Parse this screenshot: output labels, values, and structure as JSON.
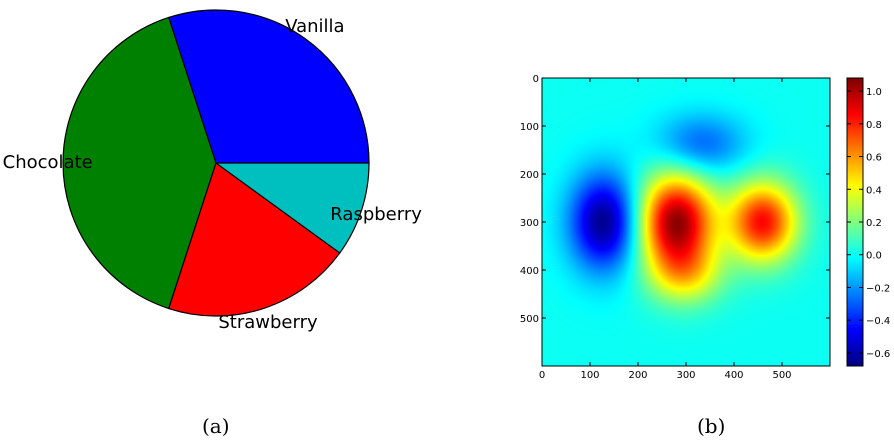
{
  "captions": {
    "a": "(a)",
    "b": "(b)"
  },
  "chart_data": [
    {
      "type": "pie",
      "categories": [
        "Vanilla",
        "Chocolate",
        "Strawberry",
        "Raspberry"
      ],
      "values": [
        30,
        40,
        20,
        10
      ],
      "colors": [
        "#0000ff",
        "#008000",
        "#ff0000",
        "#00bfbf"
      ],
      "start_angle_deg": 0,
      "direction": "counterclockwise",
      "edge_color": "#000000"
    },
    {
      "type": "heatmap",
      "colormap": "jet",
      "xlim": [
        0,
        600
      ],
      "ylim": [
        600,
        0
      ],
      "xticks": [
        0,
        100,
        200,
        300,
        400,
        500
      ],
      "yticks": [
        0,
        100,
        200,
        300,
        400,
        500
      ],
      "colorbar": {
        "vmin": -0.68,
        "vmax": 1.08,
        "ticks": [
          "1.0",
          "0.8",
          "0.6",
          "0.4",
          "0.2",
          "0.0",
          "−0.2",
          "−0.4",
          "−0.6"
        ],
        "tick_values": [
          1.0,
          0.8,
          0.6,
          0.4,
          0.2,
          0.0,
          -0.2,
          -0.4,
          -0.6
        ]
      },
      "blobs": [
        {
          "x": 130,
          "y": 300,
          "sx": 50,
          "sy": 70,
          "amp": -0.67
        },
        {
          "x": 280,
          "y": 300,
          "sx": 55,
          "sy": 70,
          "amp": 1.05
        },
        {
          "x": 460,
          "y": 300,
          "sx": 50,
          "sy": 58,
          "amp": 0.85
        },
        {
          "x": 300,
          "y": 410,
          "sx": 55,
          "sy": 45,
          "amp": 0.35
        },
        {
          "x": 330,
          "y": 140,
          "sx": 65,
          "sy": 45,
          "amp": -0.3
        }
      ]
    }
  ]
}
